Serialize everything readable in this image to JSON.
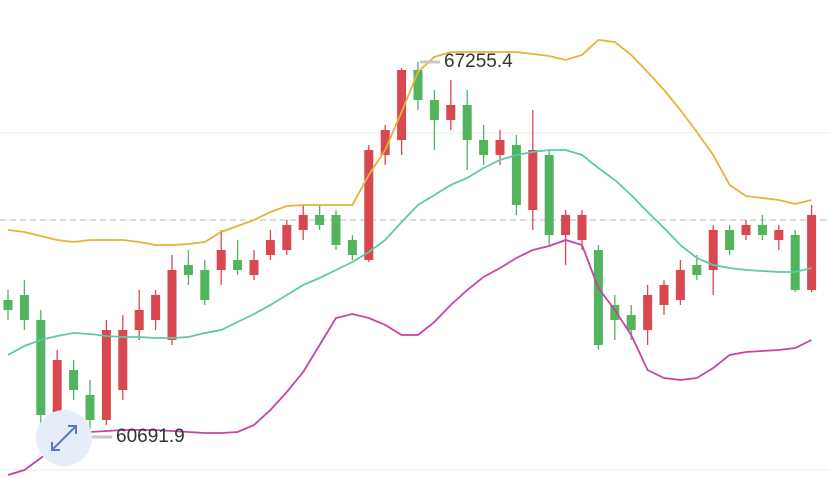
{
  "chart_data": {
    "type": "candlestick",
    "ylim": [
      59800,
      68340
    ],
    "up_color": "#d9474f",
    "down_color": "#52b45c",
    "open": [
      63090,
      63178,
      62740,
      61078,
      61865,
      61428,
      60990,
      61515,
      62565,
      62740,
      62390,
      63703,
      63615,
      63615,
      63790,
      63528,
      63878,
      63965,
      64315,
      64578,
      64578,
      64140,
      63790,
      65628,
      65890,
      67115,
      66590,
      66240,
      66503,
      65890,
      65628,
      65803,
      64665,
      65628,
      64228,
      64140,
      63965,
      63003,
      62828,
      62565,
      63003,
      63090,
      63703,
      63615,
      64315,
      64228,
      64403,
      64140,
      64228,
      63265
    ],
    "high": [
      63265,
      63440,
      62915,
      62215,
      62040,
      61690,
      62740,
      62828,
      63265,
      63265,
      63878,
      63965,
      63790,
      64315,
      64140,
      63965,
      64315,
      64490,
      64753,
      64753,
      64665,
      64228,
      65803,
      66153,
      67150,
      67255.4,
      66765,
      66940,
      66765,
      66153,
      66065,
      65978,
      66415,
      65715,
      64665,
      64665,
      64053,
      63178,
      63003,
      63353,
      63440,
      63790,
      63878,
      64403,
      64403,
      64490,
      64578,
      64403,
      64315,
      64753
    ],
    "low": [
      62740,
      62565,
      60903,
      60990,
      61340,
      60691.9,
      60903,
      61340,
      62390,
      62565,
      62303,
      63353,
      63003,
      63353,
      63528,
      63440,
      63790,
      63878,
      64140,
      64315,
      63965,
      63790,
      63755,
      65453,
      65628,
      66415,
      65715,
      66065,
      65365,
      65453,
      65453,
      64578,
      64315,
      64053,
      63703,
      63965,
      62215,
      62390,
      62390,
      62303,
      62828,
      63003,
      63440,
      63178,
      63878,
      64140,
      64140,
      63965,
      63230,
      63230
    ],
    "close": [
      62915,
      62740,
      61078,
      62040,
      61515,
      60990,
      62565,
      62565,
      62915,
      63178,
      63615,
      63528,
      63090,
      63965,
      63615,
      63790,
      64140,
      64403,
      64578,
      64403,
      64053,
      63878,
      65715,
      66065,
      67115,
      66590,
      66240,
      66503,
      65890,
      65628,
      65890,
      64753,
      65715,
      64228,
      64578,
      64578,
      62303,
      62740,
      62565,
      63178,
      63353,
      63615,
      63528,
      64315,
      63965,
      64403,
      64228,
      64315,
      63265,
      64578
    ],
    "bands": [
      {
        "color": "#e8b23a",
        "values": [
          64315,
          64280,
          64210,
          64140,
          64105,
          64140,
          64140,
          64140,
          64105,
          64053,
          64053,
          64070,
          64105,
          64280,
          64385,
          64490,
          64630,
          64735,
          64753,
          64753,
          64753,
          64753,
          65278,
          65715,
          66380,
          67080,
          67343,
          67430,
          67430,
          67430,
          67430,
          67430,
          67395,
          67360,
          67290,
          67378,
          67640,
          67605,
          67378,
          67080,
          66765,
          66415,
          66030,
          65628,
          65103,
          64910,
          64875,
          64840,
          64770,
          64840
        ]
      },
      {
        "color": "#5ccaa8",
        "values": [
          62128,
          62285,
          62390,
          62460,
          62513,
          62495,
          62460,
          62443,
          62443,
          62425,
          62425,
          62443,
          62513,
          62565,
          62705,
          62845,
          63003,
          63178,
          63353,
          63475,
          63615,
          63755,
          63930,
          64140,
          64455,
          64753,
          64928,
          65103,
          65225,
          65400,
          65540,
          65628,
          65680,
          65715,
          65715,
          65628,
          65400,
          65190,
          64928,
          64630,
          64350,
          64053,
          63825,
          63703,
          63650,
          63615,
          63598,
          63580,
          63580,
          63650
        ]
      },
      {
        "color": "#c9449f",
        "values": [
          60028,
          60115,
          60325,
          60535,
          60675,
          60780,
          60798,
          60815,
          60815,
          60815,
          60798,
          60780,
          60763,
          60763,
          60780,
          60903,
          61165,
          61480,
          61830,
          62303,
          62775,
          62845,
          62775,
          62653,
          62478,
          62478,
          62705,
          63003,
          63265,
          63493,
          63650,
          63825,
          63965,
          64035,
          64140,
          64053,
          63300,
          62915,
          62478,
          61865,
          61725,
          61690,
          61725,
          61900,
          62128,
          62180,
          62198,
          62215,
          62250,
          62390
        ]
      }
    ],
    "price_line": 64490,
    "grid_lines": [
      66013,
      60115
    ],
    "annotations": [
      67255.4,
      60691.9
    ]
  }
}
